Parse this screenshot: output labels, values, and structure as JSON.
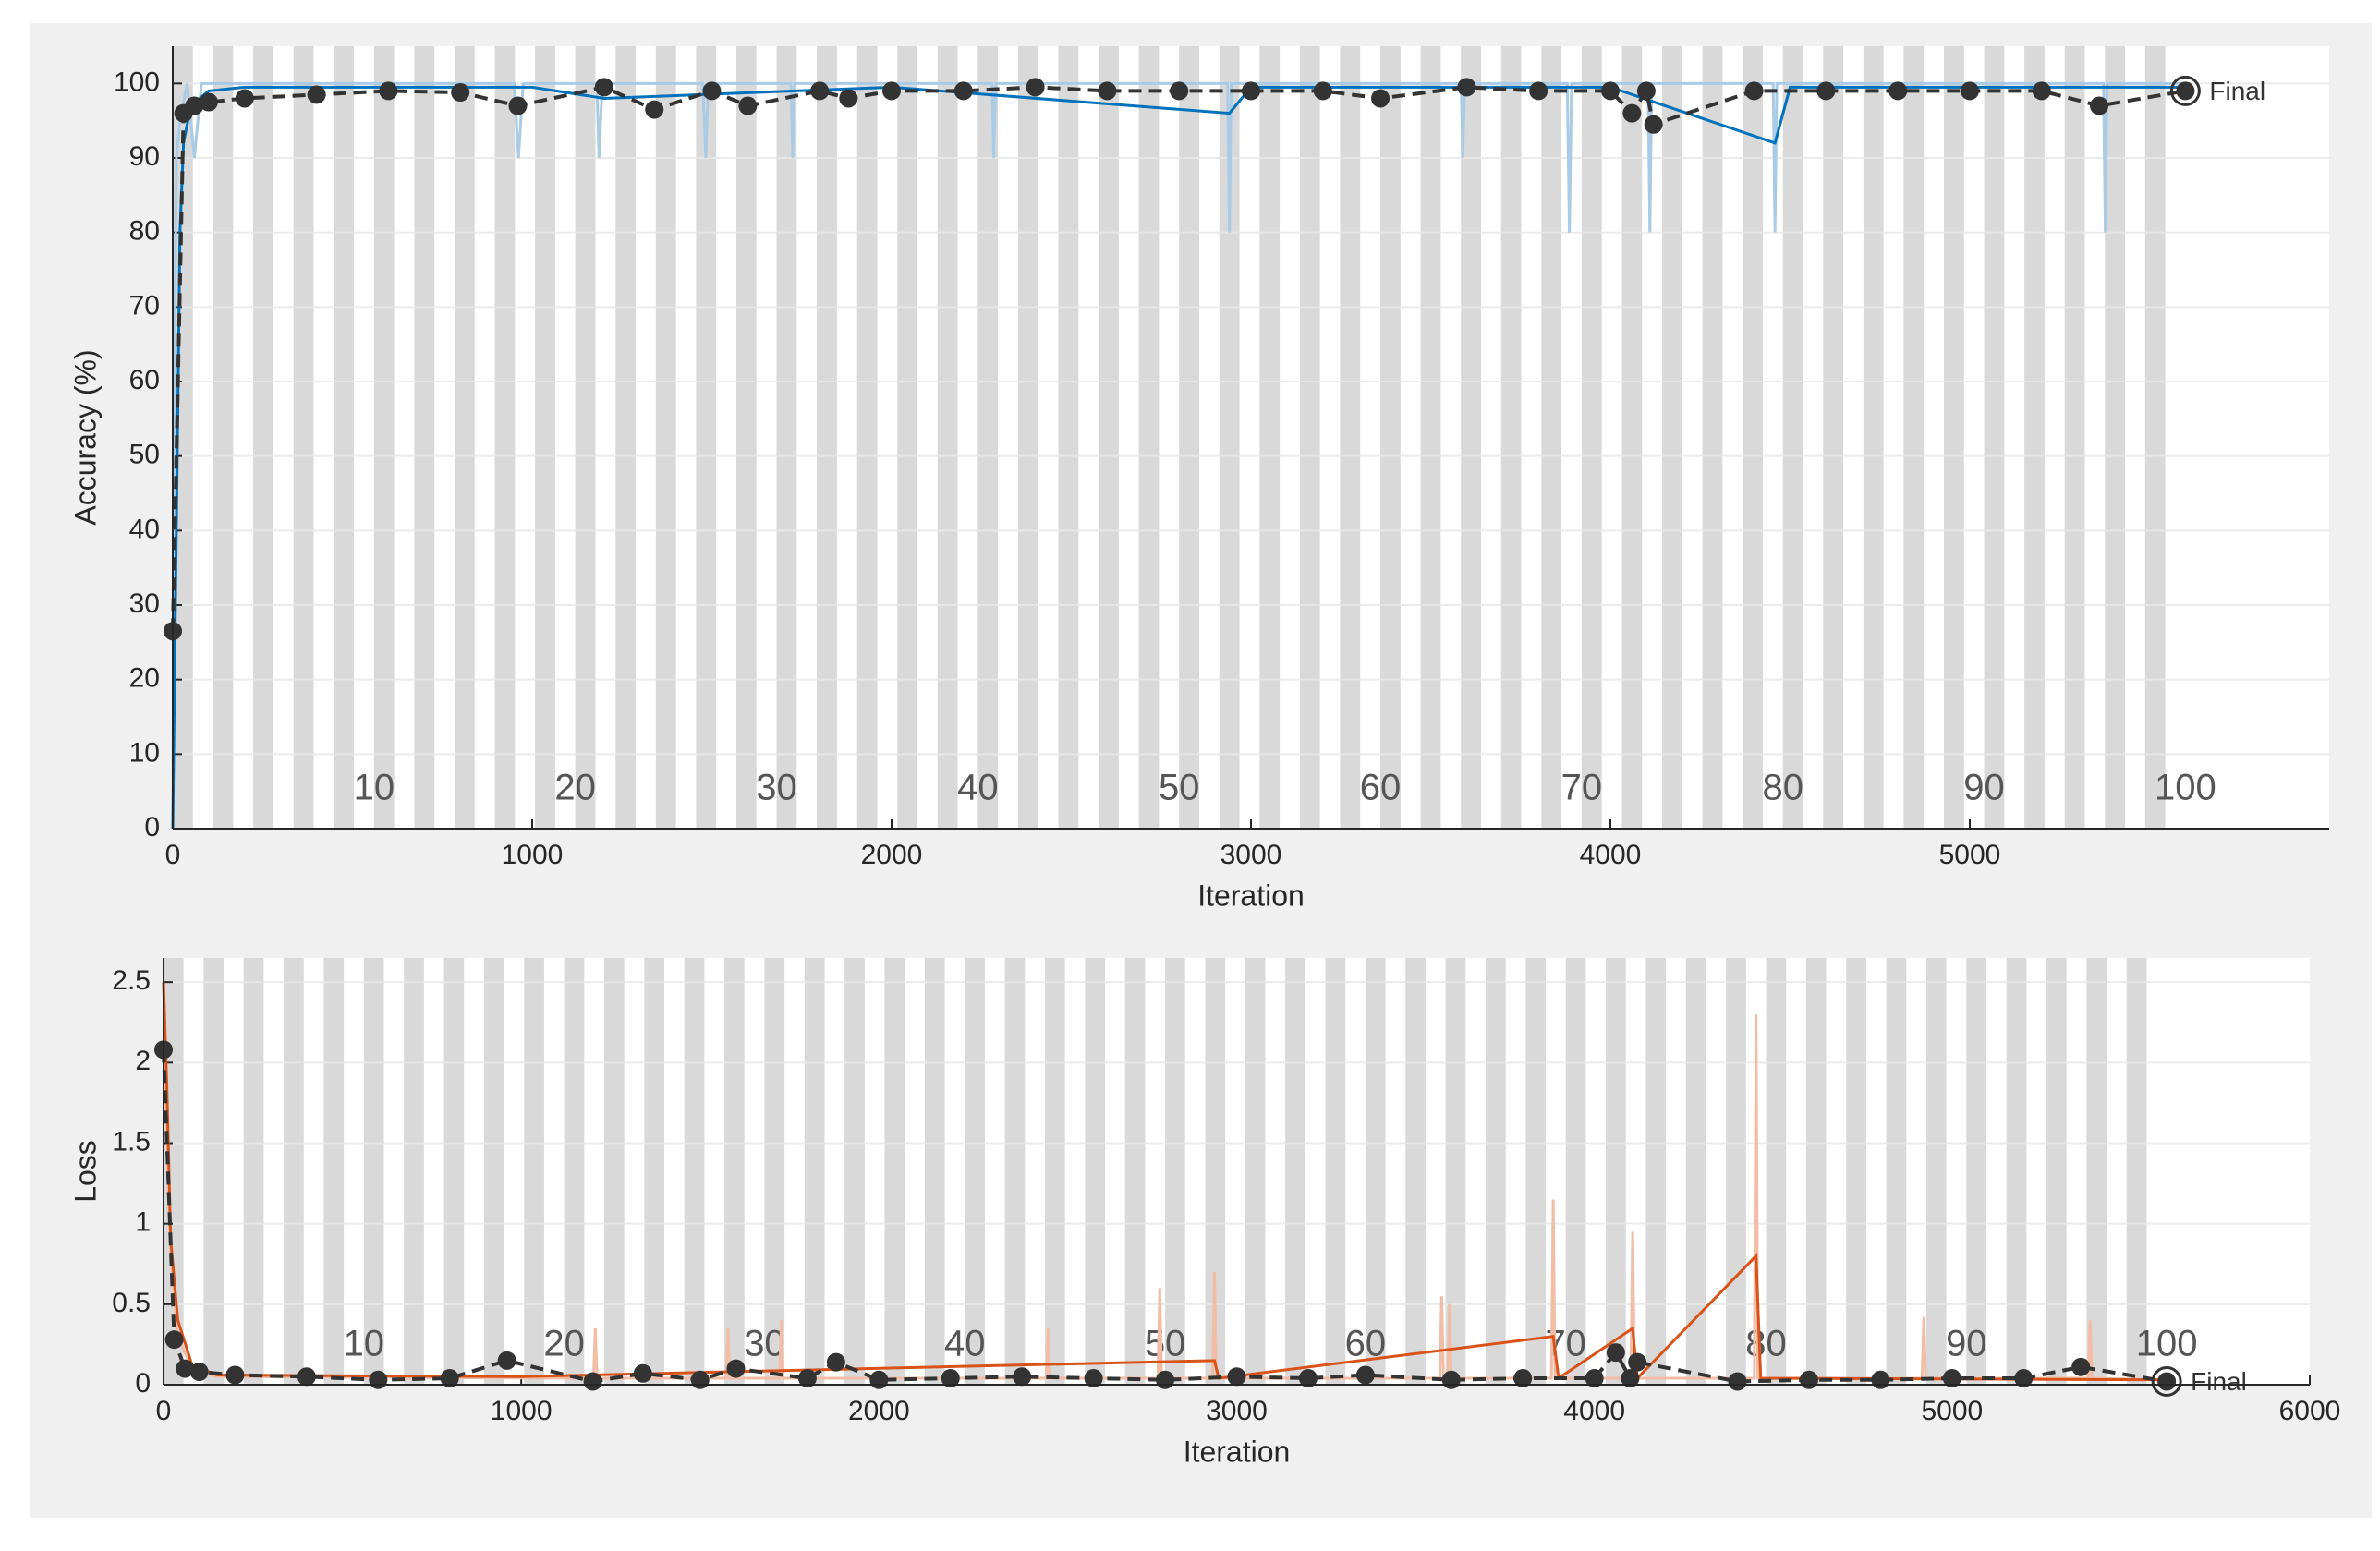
{
  "chart_data": [
    {
      "type": "line",
      "ylabel": "Accuracy (%)",
      "xlabel": "Iteration",
      "annotation": "Final",
      "xlim": [
        0,
        6000
      ],
      "xticks": [
        0,
        1000,
        2000,
        3000,
        4000,
        5000
      ],
      "ylim": [
        0,
        105
      ],
      "yticks": [
        0,
        10,
        20,
        30,
        40,
        50,
        60,
        70,
        80,
        90,
        100
      ],
      "grid": true,
      "epoch_ticks": [
        {
          "value": 560,
          "label": "10"
        },
        {
          "value": 1120,
          "label": "20"
        },
        {
          "value": 1680,
          "label": "30"
        },
        {
          "value": 2240,
          "label": "40"
        },
        {
          "value": 2800,
          "label": "50"
        },
        {
          "value": 3360,
          "label": "60"
        },
        {
          "value": 3920,
          "label": "70"
        },
        {
          "value": 4480,
          "label": "80"
        },
        {
          "value": 5040,
          "label": "90"
        },
        {
          "value": 5600,
          "label": "100"
        }
      ],
      "series": [
        {
          "color": "#a9cbe6",
          "x": [
            0,
            5,
            10,
            20,
            40,
            60,
            80,
            100,
            950,
            962,
            975,
            1180,
            1186,
            1195,
            1475,
            1483,
            1490,
            1720,
            1725,
            1730,
            2280,
            2284,
            2290,
            2935,
            2940,
            2945,
            3585,
            3589,
            3595,
            3880,
            3886,
            3892,
            4105,
            4110,
            4115,
            4453,
            4458,
            4463,
            5372,
            5377,
            5382,
            5600
          ],
          "values": [
            0,
            60,
            90,
            95,
            100,
            90,
            100,
            100,
            100,
            90,
            100,
            100,
            90,
            100,
            100,
            90,
            100,
            100,
            90,
            100,
            100,
            90,
            100,
            100,
            80,
            100,
            100,
            90,
            100,
            100,
            80,
            100,
            100,
            80,
            100,
            100,
            80,
            100,
            100,
            80,
            100,
            100
          ]
        },
        {
          "color": "#0072bd",
          "x": [
            0,
            10,
            20,
            30,
            50,
            100,
            200,
            1000,
            1200,
            2000,
            2940,
            3000,
            4000,
            4458,
            4500,
            5000,
            5600
          ],
          "values": [
            0,
            40,
            80,
            92,
            97,
            99,
            99.5,
            99.5,
            98,
            99.5,
            96,
            99.5,
            99.5,
            92,
            99.5,
            99.5,
            99.5
          ]
        },
        {
          "color": "#333333",
          "line_style": "dashed",
          "markers": true,
          "x": [
            0,
            30,
            60,
            100,
            200,
            400,
            600,
            800,
            960,
            1200,
            1340,
            1500,
            1600,
            1800,
            1880,
            2000,
            2200,
            2400,
            2600,
            2800,
            3000,
            3200,
            3360,
            3600,
            3800,
            4000,
            4060,
            4100,
            4120,
            4400,
            4600,
            4800,
            5000,
            5200,
            5360,
            5600
          ],
          "values": [
            26.5,
            96,
            97,
            97.5,
            98,
            98.5,
            99,
            98.8,
            97,
            99.5,
            96.5,
            99,
            97,
            99,
            98,
            99,
            99,
            99.5,
            99,
            99,
            99,
            99,
            98,
            99.5,
            99,
            99,
            96,
            99,
            94.5,
            99,
            99,
            99,
            99,
            99,
            97,
            99
          ]
        }
      ]
    },
    {
      "type": "line",
      "ylabel": "Loss",
      "xlabel": "Iteration",
      "annotation": "Final",
      "xlim": [
        0,
        6000
      ],
      "xticks": [
        0,
        1000,
        2000,
        3000,
        4000,
        5000,
        6000
      ],
      "ylim": [
        0,
        2.65
      ],
      "yticks": [
        0,
        0.5,
        1,
        1.5,
        2,
        2.5
      ],
      "grid": true,
      "epoch_ticks": [
        {
          "value": 560,
          "label": "10"
        },
        {
          "value": 1120,
          "label": "20"
        },
        {
          "value": 1680,
          "label": "30"
        },
        {
          "value": 2240,
          "label": "40"
        },
        {
          "value": 2800,
          "label": "50"
        },
        {
          "value": 3360,
          "label": "60"
        },
        {
          "value": 3920,
          "label": "70"
        },
        {
          "value": 4480,
          "label": "80"
        },
        {
          "value": 5040,
          "label": "90"
        },
        {
          "value": 5600,
          "label": "100"
        }
      ],
      "series": [
        {
          "color": "#f3bca5",
          "x": [
            0,
            10,
            20,
            40,
            80,
            150,
            1202,
            1207,
            1212,
            1573,
            1578,
            1583,
            1722,
            1727,
            1732,
            2468,
            2473,
            2478,
            2780,
            2785,
            2790,
            2933,
            2938,
            2943,
            3568,
            3573,
            3578,
            3590,
            3595,
            3600,
            3880,
            3885,
            3890,
            4102,
            4107,
            4112,
            4447,
            4452,
            4457,
            4916,
            4921,
            4926,
            5381,
            5386,
            5391,
            5600
          ],
          "values": [
            2.5,
            1.5,
            0.8,
            0.3,
            0.1,
            0.05,
            0.04,
            0.35,
            0.04,
            0.04,
            0.35,
            0.04,
            0.04,
            0.4,
            0.04,
            0.04,
            0.35,
            0.04,
            0.04,
            0.6,
            0.04,
            0.04,
            0.7,
            0.04,
            0.04,
            0.55,
            0.04,
            0.04,
            0.5,
            0.04,
            0.04,
            1.15,
            0.04,
            0.04,
            0.95,
            0.04,
            0.04,
            2.3,
            0.04,
            0.04,
            0.42,
            0.04,
            0.04,
            0.4,
            0.04,
            0.03
          ]
        },
        {
          "color": "#d95319",
          "x": [
            0,
            10,
            20,
            40,
            80,
            150,
            1000,
            2938,
            2950,
            3885,
            3900,
            4107,
            4120,
            4452,
            4465,
            5600
          ],
          "values": [
            2.5,
            1.8,
            0.9,
            0.4,
            0.12,
            0.06,
            0.05,
            0.15,
            0.04,
            0.3,
            0.04,
            0.35,
            0.04,
            0.8,
            0.04,
            0.03
          ]
        },
        {
          "color": "#333333",
          "line_style": "dashed",
          "markers": true,
          "x": [
            0,
            30,
            60,
            100,
            200,
            400,
            600,
            800,
            960,
            1200,
            1340,
            1500,
            1600,
            1800,
            1880,
            2000,
            2200,
            2400,
            2600,
            2800,
            3000,
            3200,
            3360,
            3600,
            3800,
            4000,
            4060,
            4100,
            4120,
            4400,
            4600,
            4800,
            5000,
            5200,
            5360,
            5600
          ],
          "values": [
            2.08,
            0.28,
            0.1,
            0.08,
            0.06,
            0.05,
            0.03,
            0.04,
            0.15,
            0.02,
            0.07,
            0.03,
            0.1,
            0.04,
            0.14,
            0.03,
            0.04,
            0.05,
            0.04,
            0.03,
            0.05,
            0.04,
            0.06,
            0.03,
            0.04,
            0.04,
            0.2,
            0.04,
            0.14,
            0.02,
            0.03,
            0.03,
            0.04,
            0.04,
            0.11,
            0.02
          ]
        }
      ]
    }
  ]
}
